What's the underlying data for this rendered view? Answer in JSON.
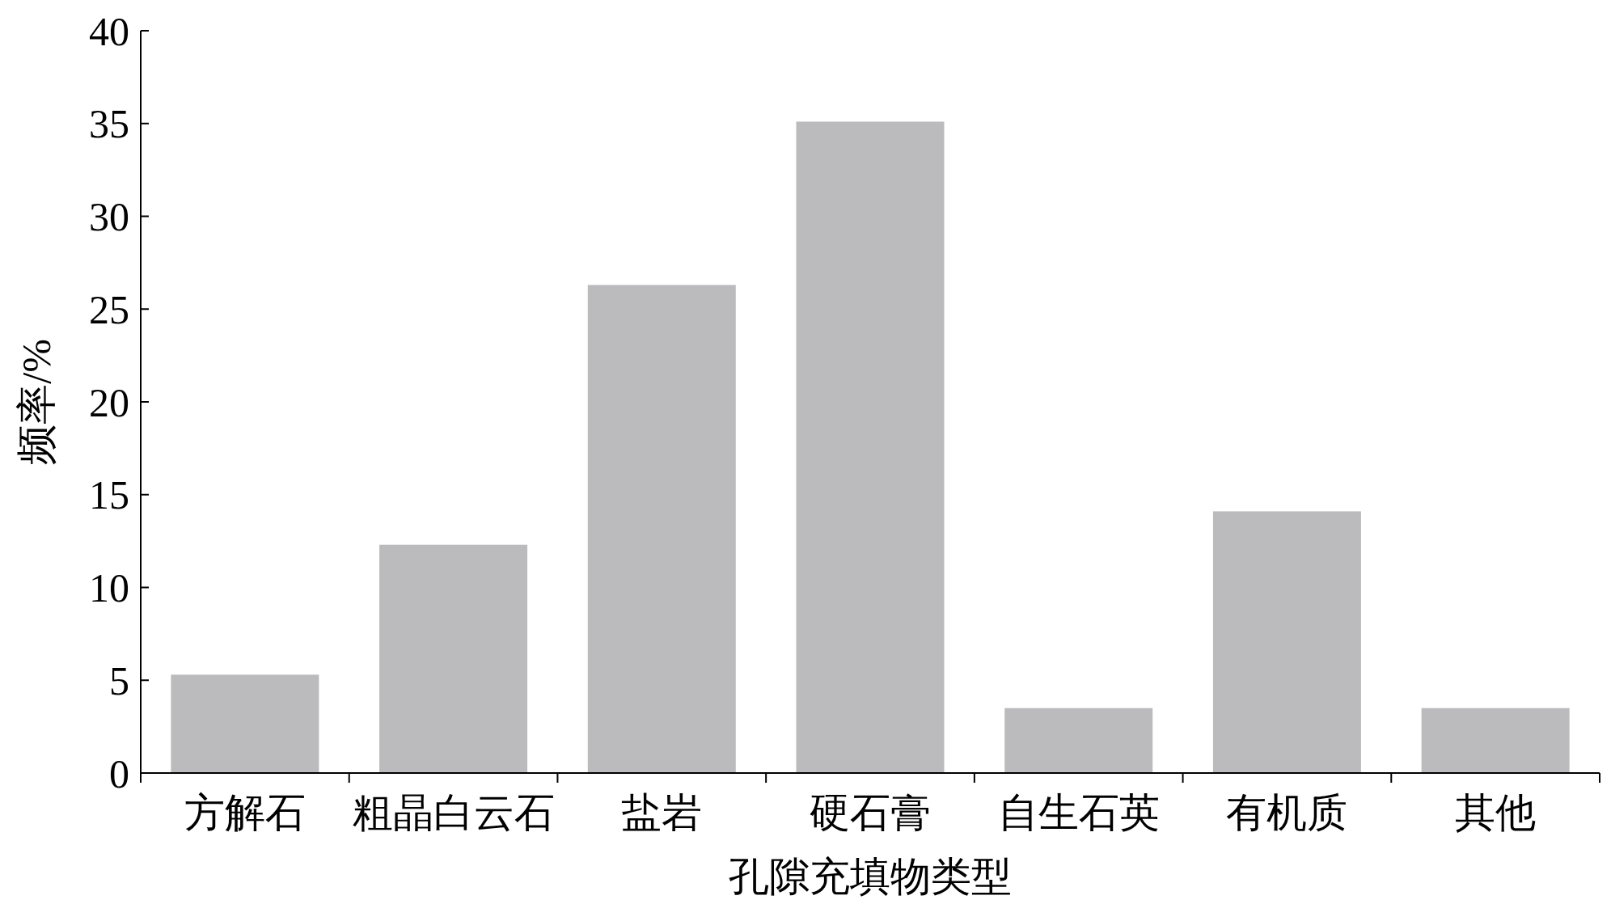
{
  "chart_data": {
    "type": "bar",
    "xlabel": "孔隙充填物类型",
    "ylabel": "频率/%",
    "categories": [
      "方解石",
      "粗晶白云石",
      "盐岩",
      "硬石膏",
      "自生石英",
      "有机质",
      "其他"
    ],
    "values": [
      5.3,
      12.3,
      26.3,
      35.1,
      3.5,
      14.1,
      3.5
    ],
    "color": "#bbbabd",
    "ylim": [
      0,
      40
    ],
    "yticks": [
      0,
      5,
      10,
      15,
      20,
      25,
      30,
      35,
      40
    ],
    "grid": false
  }
}
